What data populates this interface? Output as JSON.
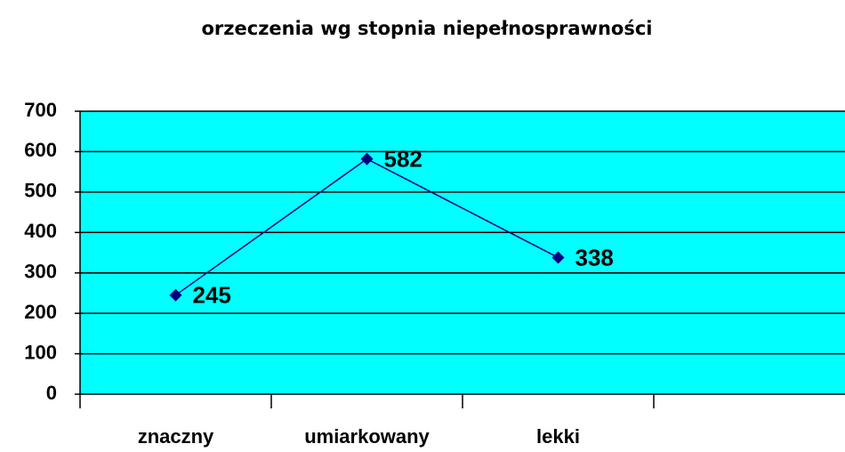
{
  "chart_data": {
    "type": "line",
    "title": "orzeczenia wg stopnia niepełnosprawności",
    "categories": [
      "znaczny",
      "umiarkowany",
      "lekki",
      null
    ],
    "values": [
      245,
      582,
      338,
      null
    ],
    "color": "#000080",
    "background": "#00ffff",
    "ylim": [
      0,
      700
    ],
    "yticks": [
      0,
      100,
      200,
      300,
      400,
      500,
      600,
      700
    ],
    "grid": true
  }
}
